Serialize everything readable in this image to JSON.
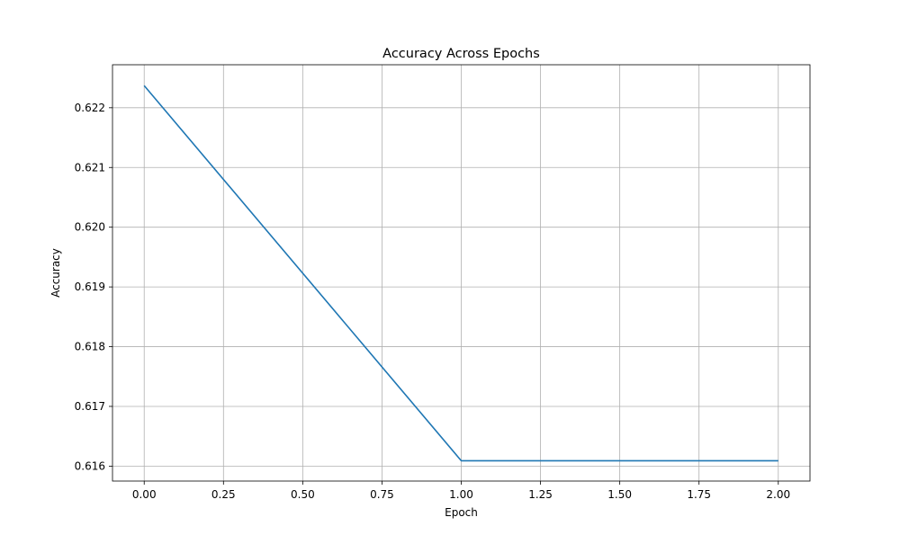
{
  "chart_data": {
    "type": "line",
    "title": "Accuracy Across Epochs",
    "xlabel": "Epoch",
    "ylabel": "Accuracy",
    "xlim": [
      -0.1,
      2.1
    ],
    "ylim": [
      0.61575,
      0.62272
    ],
    "xticks": [
      0.0,
      0.25,
      0.5,
      0.75,
      1.0,
      1.25,
      1.5,
      1.75,
      2.0
    ],
    "xtick_labels": [
      "0.00",
      "0.25",
      "0.50",
      "0.75",
      "1.00",
      "1.25",
      "1.50",
      "1.75",
      "2.00"
    ],
    "yticks": [
      0.616,
      0.617,
      0.618,
      0.619,
      0.62,
      0.621,
      0.622
    ],
    "ytick_labels": [
      "0.616",
      "0.617",
      "0.618",
      "0.619",
      "0.620",
      "0.621",
      "0.622"
    ],
    "grid": true,
    "series": [
      {
        "color": "#1f77b4",
        "x": [
          0,
          1,
          2
        ],
        "y": [
          0.62237,
          0.61609,
          0.61609
        ]
      }
    ]
  }
}
